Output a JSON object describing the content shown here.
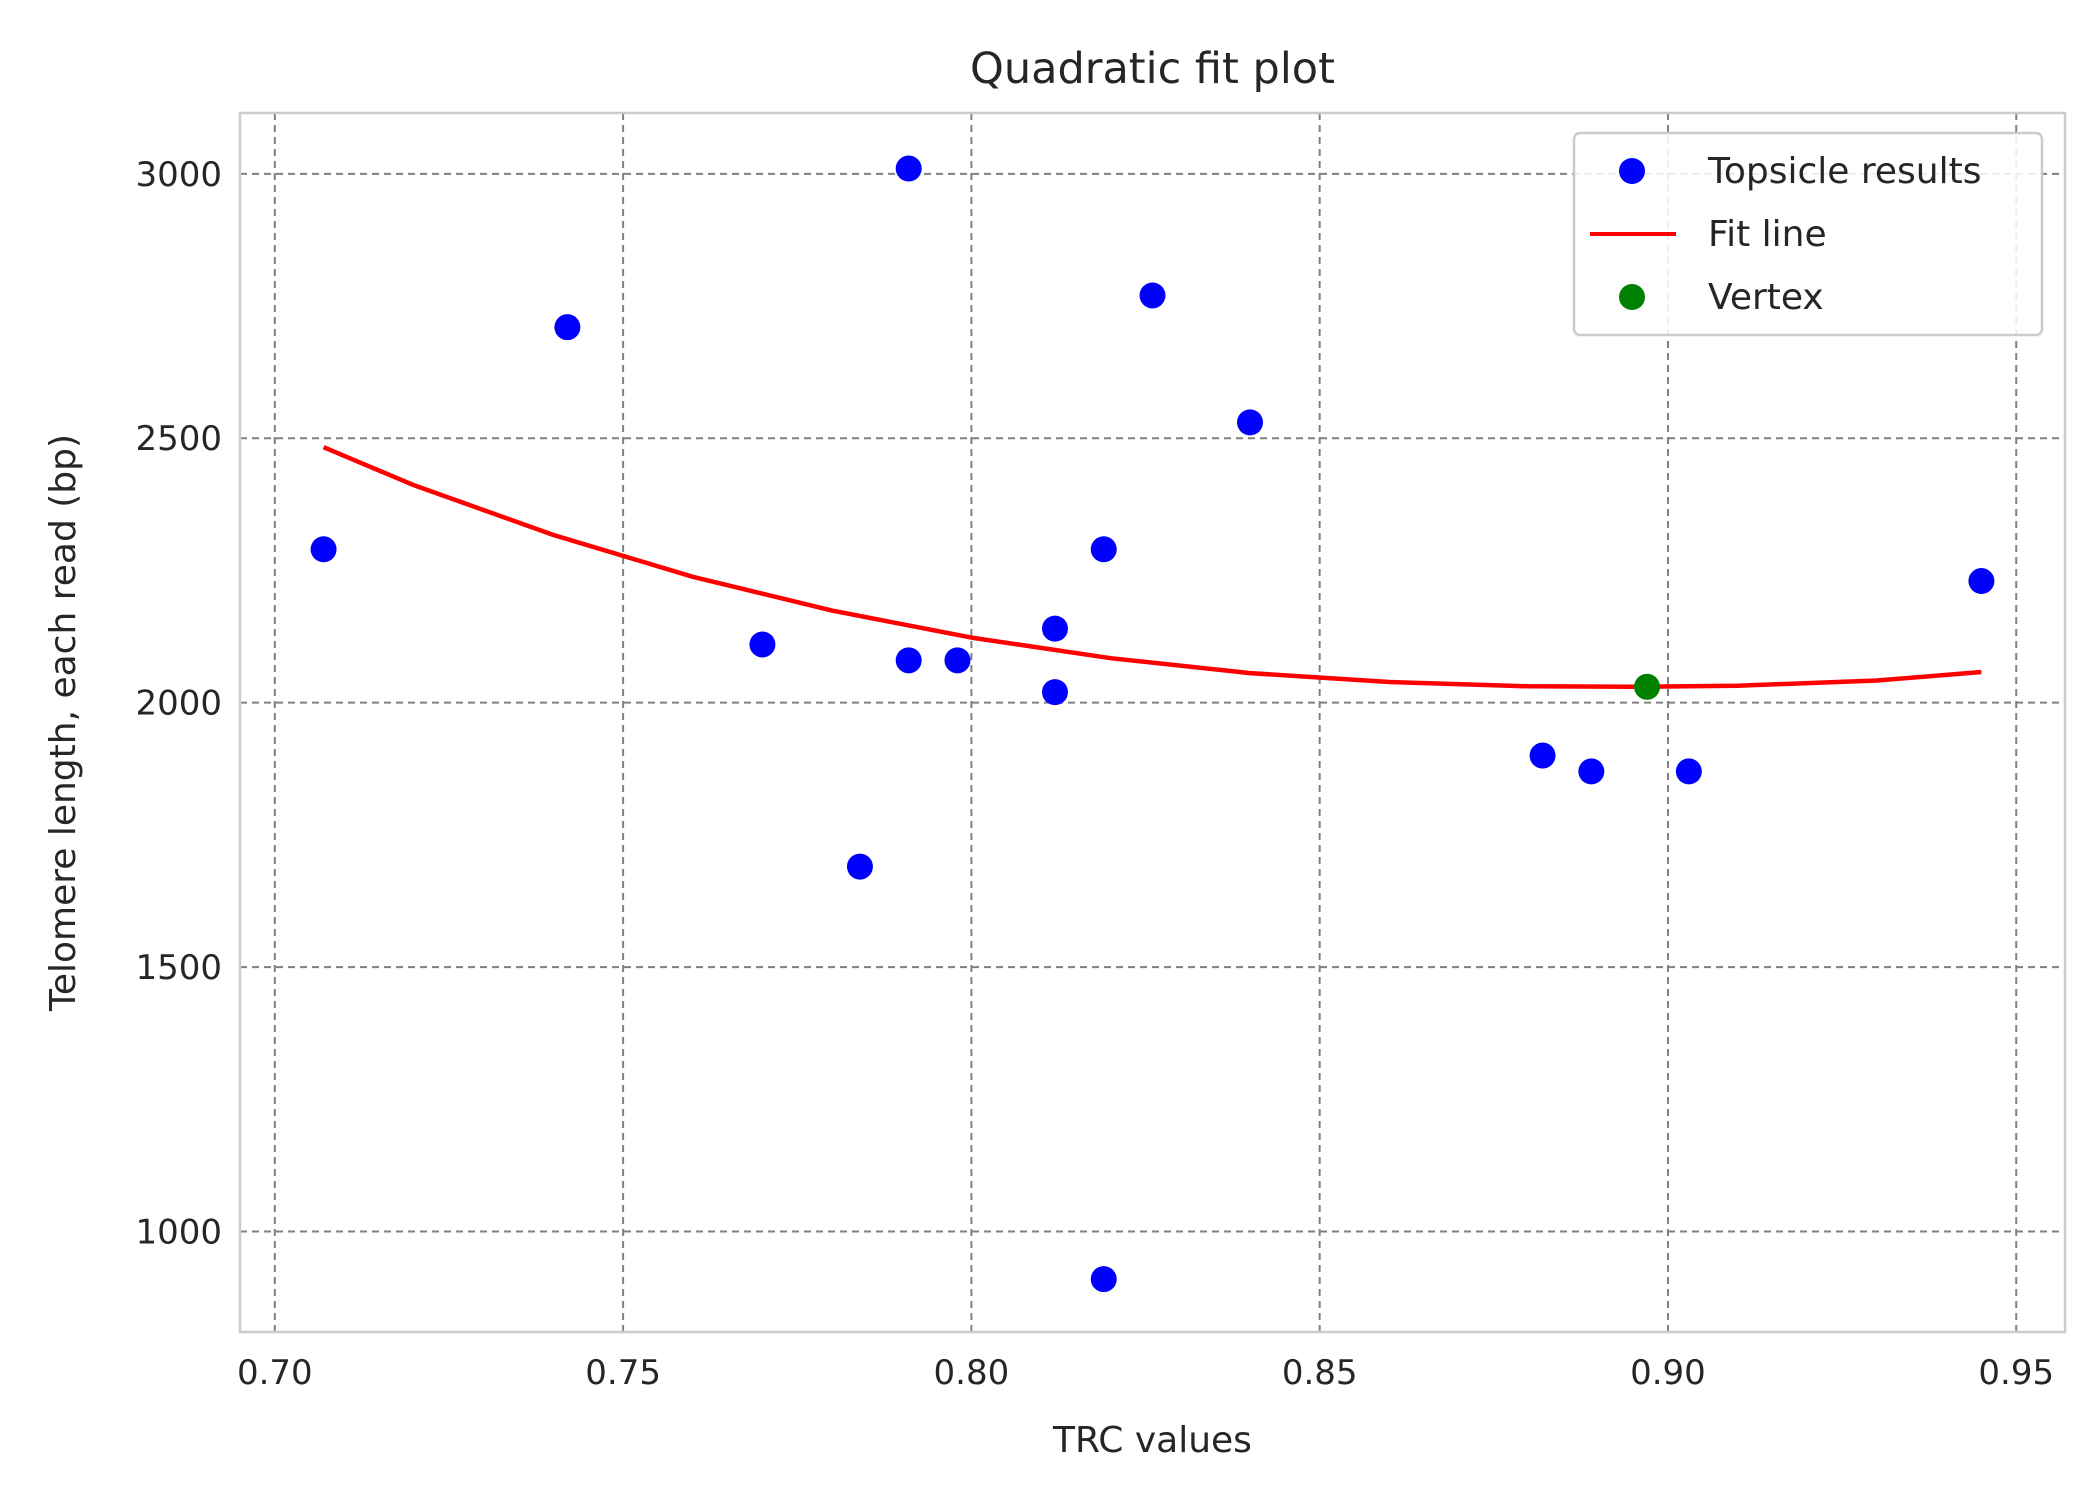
{
  "chart_data": {
    "type": "scatter",
    "title": "Quadratic fit plot",
    "xlabel": "TRC values",
    "ylabel": "Telomere length, each read (bp)",
    "xlim": [
      0.695,
      0.957
    ],
    "ylim": [
      810,
      3115
    ],
    "x_ticks": [
      0.7,
      0.75,
      0.8,
      0.85,
      0.9,
      0.95
    ],
    "x_tick_labels": [
      "0.70",
      "0.75",
      "0.80",
      "0.85",
      "0.90",
      "0.95"
    ],
    "y_ticks": [
      1000,
      1500,
      2000,
      2500,
      3000
    ],
    "y_tick_labels": [
      "1000",
      "1500",
      "2000",
      "2500",
      "3000"
    ],
    "grid": true,
    "legend_position": "top-right",
    "colors": {
      "points": "#0000ff",
      "fit_line": "#ff0000",
      "vertex": "#008000",
      "grid": "#808080",
      "frame": "#cccccc"
    },
    "series": [
      {
        "name": "Topsicle results",
        "kind": "scatter",
        "x": [
          0.707,
          0.742,
          0.77,
          0.784,
          0.791,
          0.791,
          0.798,
          0.812,
          0.812,
          0.819,
          0.819,
          0.826,
          0.84,
          0.882,
          0.889,
          0.903,
          0.945
        ],
        "y": [
          2290,
          2710,
          2110,
          1690,
          3010,
          2080,
          2080,
          2140,
          2020,
          2290,
          910,
          2770,
          2530,
          1900,
          1870,
          1870,
          2230
        ]
      },
      {
        "name": "Fit line",
        "kind": "line",
        "x": [
          0.707,
          0.72,
          0.74,
          0.76,
          0.78,
          0.8,
          0.82,
          0.84,
          0.86,
          0.88,
          0.895,
          0.91,
          0.93,
          0.945
        ],
        "y": [
          2483,
          2411,
          2317,
          2238,
          2174,
          2123,
          2084,
          2056,
          2039,
          2031,
          2030,
          2032,
          2042,
          2058
        ]
      },
      {
        "name": "Vertex",
        "kind": "scatter",
        "x": [
          0.897
        ],
        "y": [
          2030
        ]
      }
    ]
  }
}
